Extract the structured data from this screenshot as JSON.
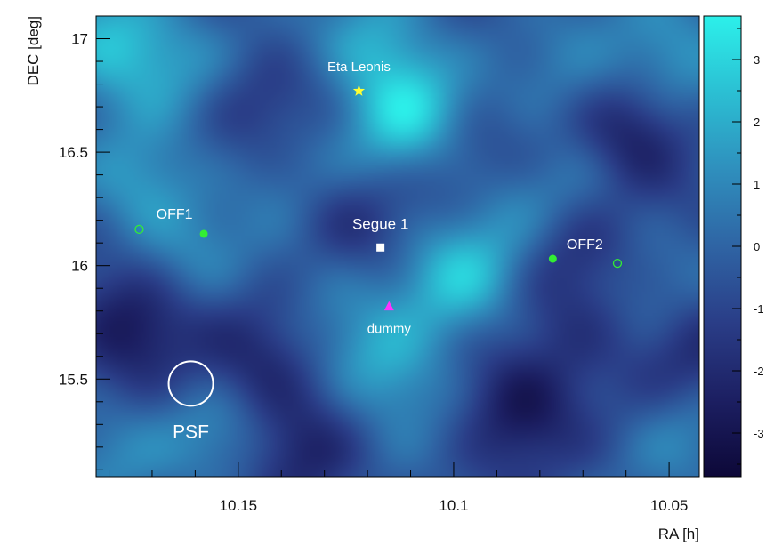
{
  "chart_data": {
    "type": "heatmap",
    "xlabel": "RA [h]",
    "ylabel": "DEC [deg]",
    "xlim": [
      10.183,
      10.043
    ],
    "ylim": [
      15.07,
      17.1
    ],
    "x_reversed": true,
    "x_ticks": [
      10.15,
      10.1,
      10.05
    ],
    "x_tick_labels": [
      "10.15",
      "10.1",
      "10.05"
    ],
    "y_ticks": [
      15.5,
      16,
      16.5,
      17
    ],
    "y_tick_labels": [
      "15.5",
      "16",
      "16.5",
      "17"
    ],
    "colorbar": {
      "range": [
        -3.7,
        3.7
      ],
      "ticks": [
        -3,
        -2,
        -1,
        0,
        1,
        2,
        3
      ],
      "tick_labels": [
        "-3",
        "-2",
        "-1",
        "0",
        "1",
        "2",
        "3"
      ],
      "colors": [
        "#0d0838",
        "#1c1f62",
        "#2a3d87",
        "#2f64a4",
        "#2f8fbd",
        "#2bbfd3",
        "#2cf0ea"
      ]
    },
    "map_blobs": [
      {
        "ra": 10.118,
        "dec": 16.98,
        "sig": 2.2
      },
      {
        "ra": 10.11,
        "dec": 16.65,
        "sig": 3.4
      },
      {
        "ra": 10.18,
        "dec": 16.98,
        "sig": 2.6
      },
      {
        "ra": 10.165,
        "dec": 16.9,
        "sig": 1.5
      },
      {
        "ra": 10.05,
        "dec": 16.95,
        "sig": 2.0
      },
      {
        "ra": 10.072,
        "dec": 16.82,
        "sig": 1.2
      },
      {
        "ra": 10.172,
        "dec": 16.35,
        "sig": 2.0
      },
      {
        "ra": 10.16,
        "dec": 16.05,
        "sig": 1.0
      },
      {
        "ra": 10.13,
        "dec": 16.0,
        "sig": 1.2
      },
      {
        "ra": 10.14,
        "dec": 16.45,
        "sig": 0.8
      },
      {
        "ra": 10.098,
        "dec": 15.94,
        "sig": 2.8
      },
      {
        "ra": 10.085,
        "dec": 16.25,
        "sig": 1.0
      },
      {
        "ra": 10.067,
        "dec": 16.4,
        "sig": 1.4
      },
      {
        "ra": 10.113,
        "dec": 15.5,
        "sig": 1.8
      },
      {
        "ra": 10.12,
        "dec": 15.65,
        "sig": 1.0
      },
      {
        "ra": 10.047,
        "dec": 15.28,
        "sig": 1.2
      },
      {
        "ra": 10.153,
        "dec": 15.25,
        "sig": 1.6
      },
      {
        "ra": 10.18,
        "dec": 15.18,
        "sig": 1.2
      },
      {
        "ra": 10.055,
        "dec": 15.95,
        "sig": 0.8
      },
      {
        "ra": 10.145,
        "dec": 16.72,
        "sig": -1.2
      },
      {
        "ra": 10.06,
        "dec": 16.55,
        "sig": -3.0
      },
      {
        "ra": 10.145,
        "dec": 15.55,
        "sig": -2.0
      },
      {
        "ra": 10.175,
        "dec": 15.75,
        "sig": -2.5
      },
      {
        "ra": 10.085,
        "dec": 15.38,
        "sig": -2.5
      },
      {
        "ra": 10.125,
        "dec": 16.15,
        "sig": -1.6
      },
      {
        "ra": 10.072,
        "dec": 16.1,
        "sig": -1.4
      },
      {
        "ra": 10.1,
        "dec": 16.5,
        "sig": -1.0
      },
      {
        "ra": 10.045,
        "dec": 15.6,
        "sig": -1.4
      },
      {
        "ra": 10.135,
        "dec": 15.15,
        "sig": -1.8
      },
      {
        "ra": 10.07,
        "dec": 15.7,
        "sig": -1.0
      }
    ],
    "markers": [
      {
        "name": "Eta Leonis",
        "ra": 10.122,
        "dec": 16.77,
        "shape": "star",
        "color": "#ffff33",
        "label": "Eta Leonis"
      },
      {
        "name": "Segue 1",
        "ra": 10.117,
        "dec": 16.08,
        "shape": "square",
        "color": "#ffffff",
        "label": "Segue 1"
      },
      {
        "name": "dummy",
        "ra": 10.115,
        "dec": 15.82,
        "shape": "triangle",
        "color": "#ff33ff",
        "label": "dummy"
      },
      {
        "name": "OFF1",
        "ra": 10.158,
        "dec": 16.14,
        "shape": "filled-circle",
        "color": "#33ee33",
        "label": "OFF1"
      },
      {
        "name": "OFF1 open",
        "ra": 10.173,
        "dec": 16.16,
        "shape": "open-circle",
        "color": "#33ee33",
        "label": ""
      },
      {
        "name": "OFF2",
        "ra": 10.077,
        "dec": 16.03,
        "shape": "filled-circle",
        "color": "#33ee33",
        "label": "OFF2"
      },
      {
        "name": "OFF2 open",
        "ra": 10.062,
        "dec": 16.01,
        "shape": "open-circle",
        "color": "#33ee33",
        "label": ""
      }
    ],
    "psf": {
      "ra": 10.161,
      "dec": 15.48,
      "label": "PSF"
    }
  }
}
